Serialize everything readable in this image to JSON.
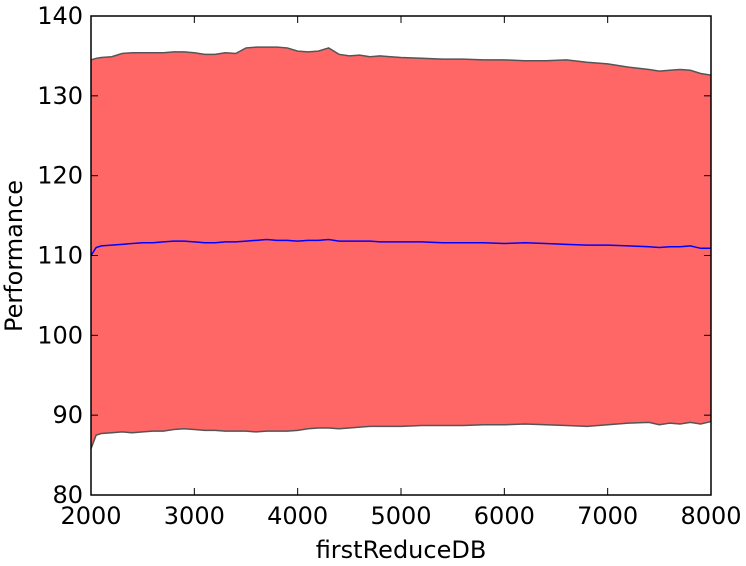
{
  "chart_data": {
    "type": "area",
    "xlabel": "firstReduceDB",
    "ylabel": "Performance",
    "xlim": [
      2000,
      8000
    ],
    "ylim": [
      80,
      140
    ],
    "xticks": [
      2000,
      3000,
      4000,
      5000,
      6000,
      7000,
      8000
    ],
    "yticks": [
      80,
      90,
      100,
      110,
      120,
      130,
      140
    ],
    "grid": false,
    "legend": "none",
    "colors": {
      "band": "#ff6666",
      "band_edge": "#555555",
      "mean_line": "#0000ff"
    },
    "series": [
      {
        "role": "mean",
        "x": [
          2000,
          2050,
          2100,
          2200,
          2300,
          2400,
          2500,
          2600,
          2700,
          2800,
          2900,
          3000,
          3100,
          3200,
          3300,
          3400,
          3500,
          3600,
          3700,
          3800,
          3900,
          4000,
          4100,
          4200,
          4300,
          4400,
          4500,
          4600,
          4700,
          4800,
          4900,
          5000,
          5200,
          5400,
          5600,
          5800,
          6000,
          6200,
          6400,
          6600,
          6800,
          7000,
          7200,
          7400,
          7500,
          7600,
          7700,
          7800,
          7900,
          8000
        ],
        "values": [
          110.0,
          111.0,
          111.2,
          111.3,
          111.4,
          111.5,
          111.6,
          111.6,
          111.7,
          111.8,
          111.8,
          111.7,
          111.6,
          111.6,
          111.7,
          111.7,
          111.8,
          111.9,
          112.0,
          111.9,
          111.9,
          111.8,
          111.9,
          111.9,
          112.0,
          111.8,
          111.8,
          111.8,
          111.8,
          111.7,
          111.7,
          111.7,
          111.7,
          111.6,
          111.6,
          111.6,
          111.5,
          111.6,
          111.5,
          111.4,
          111.3,
          111.3,
          111.2,
          111.1,
          111.0,
          111.1,
          111.1,
          111.2,
          110.9,
          110.9
        ]
      },
      {
        "role": "upper",
        "x": [
          2000,
          2050,
          2100,
          2200,
          2300,
          2400,
          2500,
          2600,
          2700,
          2800,
          2900,
          3000,
          3100,
          3200,
          3300,
          3400,
          3500,
          3600,
          3700,
          3800,
          3900,
          4000,
          4100,
          4200,
          4300,
          4400,
          4500,
          4600,
          4700,
          4800,
          4900,
          5000,
          5200,
          5400,
          5600,
          5800,
          6000,
          6200,
          6400,
          6600,
          6800,
          7000,
          7200,
          7400,
          7500,
          7600,
          7700,
          7800,
          7900,
          8000
        ],
        "values": [
          134.5,
          134.7,
          134.8,
          134.9,
          135.3,
          135.4,
          135.4,
          135.4,
          135.4,
          135.5,
          135.5,
          135.4,
          135.2,
          135.2,
          135.4,
          135.3,
          136.0,
          136.1,
          136.1,
          136.1,
          136.0,
          135.6,
          135.5,
          135.6,
          136.0,
          135.2,
          135.0,
          135.1,
          134.9,
          135.0,
          134.9,
          134.8,
          134.7,
          134.6,
          134.6,
          134.5,
          134.5,
          134.4,
          134.4,
          134.5,
          134.2,
          134.0,
          133.6,
          133.3,
          133.1,
          133.2,
          133.3,
          133.2,
          132.8,
          132.6
        ]
      },
      {
        "role": "lower",
        "x": [
          2000,
          2050,
          2100,
          2200,
          2300,
          2400,
          2500,
          2600,
          2700,
          2800,
          2900,
          3000,
          3100,
          3200,
          3300,
          3400,
          3500,
          3600,
          3700,
          3800,
          3900,
          4000,
          4100,
          4200,
          4300,
          4400,
          4500,
          4600,
          4700,
          4800,
          4900,
          5000,
          5200,
          5400,
          5600,
          5800,
          6000,
          6200,
          6400,
          6600,
          6800,
          7000,
          7200,
          7400,
          7500,
          7600,
          7700,
          7800,
          7900,
          8000
        ],
        "values": [
          85.8,
          87.5,
          87.7,
          87.8,
          87.9,
          87.8,
          87.9,
          88.0,
          88.0,
          88.2,
          88.3,
          88.2,
          88.1,
          88.1,
          88.0,
          88.0,
          88.0,
          87.9,
          88.0,
          88.0,
          88.0,
          88.1,
          88.3,
          88.4,
          88.4,
          88.3,
          88.4,
          88.5,
          88.6,
          88.6,
          88.6,
          88.6,
          88.7,
          88.7,
          88.7,
          88.8,
          88.8,
          88.9,
          88.8,
          88.7,
          88.6,
          88.8,
          89.0,
          89.1,
          88.8,
          89.0,
          88.9,
          89.1,
          88.9,
          89.2
        ]
      }
    ]
  }
}
